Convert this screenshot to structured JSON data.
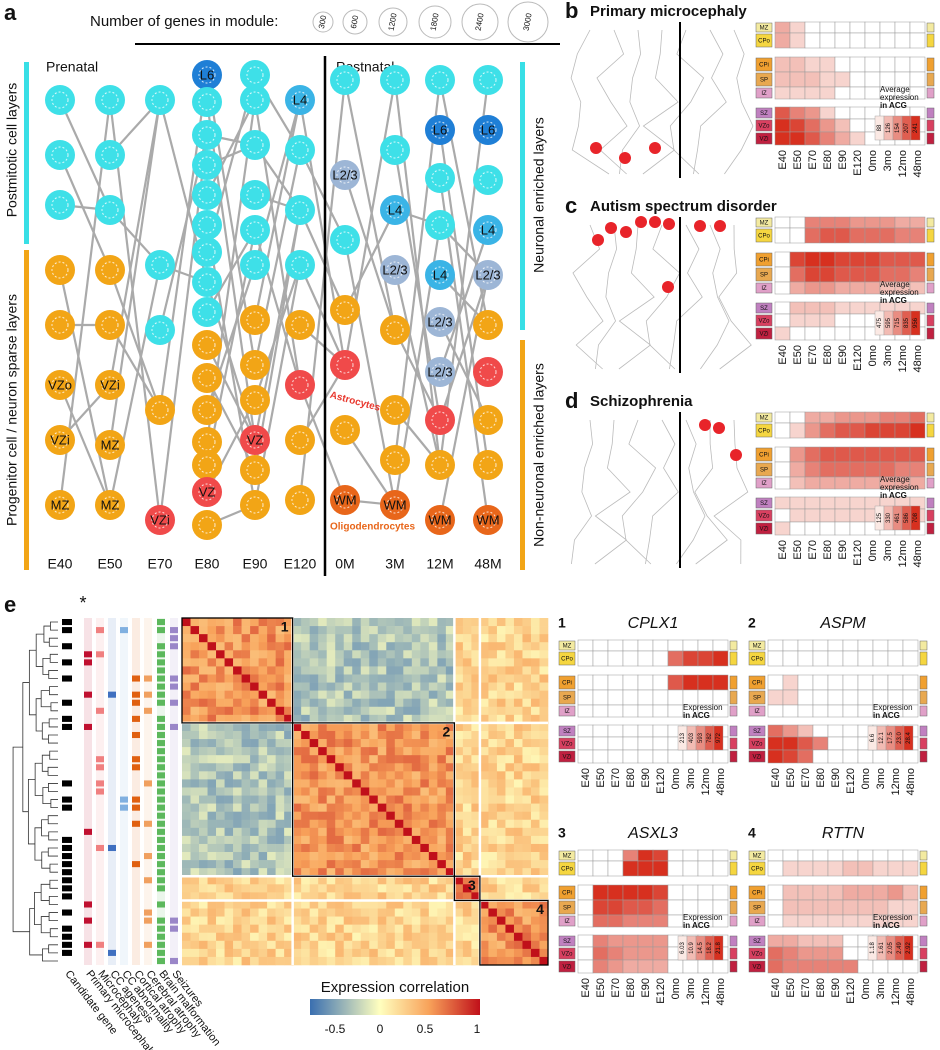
{
  "panel_a": {
    "letter": "a",
    "size_legend_title": "Number of genes in module:",
    "size_legend_labels": [
      "300",
      "600",
      "1200",
      "1800",
      "2400",
      "3000"
    ],
    "prenatal": "Prenatal",
    "postnatal": "Postnatal",
    "left_top_label": "Postmitotic cell layers",
    "left_bottom_label": "Progenitor cell / neuron sparse layers",
    "right_top_label": "Neuronal enriched layers",
    "right_bottom_label": "Non-neuronal enriched layers",
    "stages": [
      "E40",
      "E50",
      "E70",
      "E80",
      "E90",
      "E120",
      "0M",
      "3M",
      "12M",
      "48M"
    ],
    "node_labels": [
      "L6",
      "L4",
      "L2/3",
      "L6",
      "L6",
      "L4",
      "L4",
      "L2/3",
      "L4",
      "L2/3",
      "L2/3",
      "L2/3",
      "VZo",
      "VZi",
      "VZi",
      "MZ",
      "VZ",
      "MZ",
      "MZ",
      "VZi",
      "VZ",
      "WM",
      "WM",
      "WM",
      "WM"
    ],
    "astrocytes": "Astrocytes",
    "oligodendrocytes": "Oligodendrocytes"
  },
  "heatmap_rows": [
    "MZ",
    "CPo",
    "CPi",
    "SP",
    "IZ",
    "SZ",
    "VZo",
    "VZi"
  ],
  "heatmap_columns": [
    "E40",
    "E50",
    "E70",
    "E80",
    "E90",
    "E120",
    "0mo",
    "3mo",
    "12mo",
    "48mo"
  ],
  "panels_bcd": [
    {
      "letter": "b",
      "title": "Primary microcephaly",
      "legend_lines": [
        "Average",
        "expression",
        "in ACG"
      ],
      "legend_values": [
        "88",
        "126",
        "154",
        "207",
        "241"
      ]
    },
    {
      "letter": "c",
      "title": "Autism spectrum disorder",
      "legend_lines": [
        "Average",
        "expression",
        "in ACG"
      ],
      "legend_values": [
        "475",
        "595",
        "715",
        "835",
        "956"
      ]
    },
    {
      "letter": "d",
      "title": "Schizophrenia",
      "legend_lines": [
        "Average",
        "expression",
        "in ACG"
      ],
      "legend_values": [
        "125",
        "330",
        "461",
        "586",
        "708"
      ]
    }
  ],
  "panel_e": {
    "letter": "e",
    "star": "*",
    "annotations": [
      "Candidate gene",
      "Primary microcephaly",
      "Microcephaly",
      "CC agenesis",
      "CC abnormality",
      "Cortical atrophy",
      "Cerebral atrophy",
      "Brain malformation",
      "Seizures"
    ],
    "block_labels": [
      "1",
      "2",
      "3",
      "4"
    ],
    "colorbar_title": "Expression correlation",
    "colorbar_ticks": [
      "-0.5",
      "0",
      "0.5",
      "1"
    ],
    "modules": [
      {
        "number": "1",
        "gene": "CPLX1",
        "legend_lines": [
          "Expression",
          "in ACG"
        ],
        "legend_values": [
          "213",
          "403",
          "593",
          "782",
          "972"
        ]
      },
      {
        "number": "2",
        "gene": "ASPM",
        "legend_lines": [
          "Expression",
          "in ACG"
        ],
        "legend_values": [
          "6.6",
          "12.1",
          "17.5",
          "23.0",
          "28.4"
        ]
      },
      {
        "number": "3",
        "gene": "ASXL3",
        "legend_lines": [
          "Expression",
          "in ACG"
        ],
        "legend_values": [
          "6.03",
          "10.9",
          "14.5",
          "18.2",
          "21.8"
        ]
      },
      {
        "number": "4",
        "gene": "RTTN",
        "legend_lines": [
          "Expression",
          "in ACG"
        ],
        "legend_values": [
          "1.18",
          "1.61",
          "2.05",
          "2.49",
          "2.92"
        ]
      }
    ]
  }
}
